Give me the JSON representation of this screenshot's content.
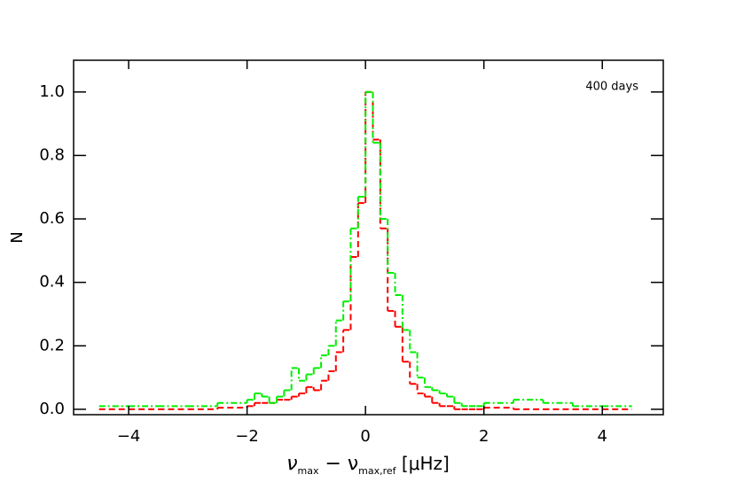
{
  "chart_data": {
    "type": "histogram",
    "annotation": "400 days",
    "ylabel": "N",
    "xlabel": [
      "ν",
      "max",
      " − ν",
      "max,ref",
      " [μHz]"
    ],
    "bins": [
      -4.5,
      -4,
      -3.5,
      -3,
      -2.5,
      -2,
      -1.875,
      -1.75,
      -1.625,
      -1.5,
      -1.375,
      -1.25,
      -1.125,
      -1,
      -0.875,
      -0.75,
      -0.625,
      -0.5,
      -0.375,
      -0.25,
      -0.125,
      0,
      0.125,
      0.25,
      0.375,
      0.5,
      0.625,
      0.75,
      0.875,
      1,
      1.125,
      1.25,
      1.375,
      1.5,
      1.625,
      1.75,
      1.875,
      2,
      2.5,
      3,
      3.5,
      4,
      4.5
    ],
    "series": [
      {
        "color": "#ff0000",
        "dash": "7,4",
        "values": [
          0,
          0,
          0,
          0,
          0.005,
          0.01,
          0.02,
          0.02,
          0.02,
          0.03,
          0.03,
          0.04,
          0.05,
          0.07,
          0.06,
          0.09,
          0.12,
          0.18,
          0.25,
          0.48,
          0.65,
          1.0,
          0.85,
          0.57,
          0.31,
          0.26,
          0.15,
          0.08,
          0.05,
          0.04,
          0.02,
          0.01,
          0.01,
          0,
          0,
          0,
          0,
          0.005,
          0,
          0,
          0,
          0
        ]
      },
      {
        "color": "#00ee00",
        "dash": "7,3,2,3",
        "values": [
          0.01,
          0.01,
          0.01,
          0.01,
          0.02,
          0.03,
          0.05,
          0.04,
          0.02,
          0.04,
          0.06,
          0.13,
          0.09,
          0.11,
          0.13,
          0.17,
          0.2,
          0.28,
          0.34,
          0.57,
          0.67,
          1.0,
          0.84,
          0.6,
          0.43,
          0.36,
          0.25,
          0.18,
          0.1,
          0.07,
          0.06,
          0.05,
          0.04,
          0.02,
          0.01,
          0.01,
          0.01,
          0.02,
          0.03,
          0.02,
          0.01,
          0.01
        ]
      }
    ],
    "xlim": [
      -4.93,
      5.03
    ],
    "ylim": [
      -0.017,
      1.1
    ],
    "xticks": [
      {
        "value": -4,
        "label": "−4"
      },
      {
        "value": -2,
        "label": "−2"
      },
      0,
      2,
      4
    ],
    "yticks": [
      {
        "value": 0,
        "label": "0.0"
      },
      0.2,
      0.4,
      0.6,
      0.8,
      {
        "value": 1,
        "label": "1.0"
      }
    ]
  }
}
